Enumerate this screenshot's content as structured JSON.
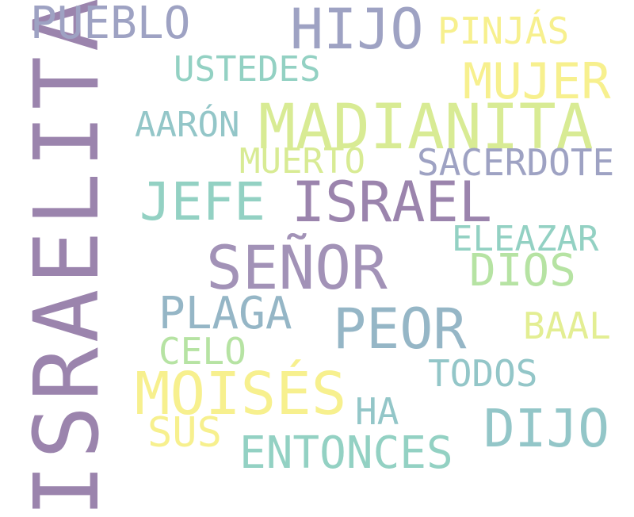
{
  "cloud": {
    "background": "#ffffff",
    "words": {
      "israelita": {
        "text": "ISRAELITA",
        "color": "#9b84ad"
      },
      "pueblo": {
        "text": "PUEBLO",
        "color": "#9ea2c3"
      },
      "hijo": {
        "text": "HIJO",
        "color": "#9ea2c3"
      },
      "pinjas": {
        "text": "PINJÁS",
        "color": "#f7f08e"
      },
      "ustedes": {
        "text": "USTEDES",
        "color": "#93d1c3"
      },
      "mujer": {
        "text": "MUJER",
        "color": "#f7f08e"
      },
      "aaron": {
        "text": "AARÓN",
        "color": "#93c6c8"
      },
      "madianita": {
        "text": "MADIANITA",
        "color": "#d8eb94"
      },
      "muerto": {
        "text": "MUERTO",
        "color": "#d8eb94"
      },
      "sacerdote": {
        "text": "SACERDOTE",
        "color": "#9ea2c3"
      },
      "jefe": {
        "text": "JEFE",
        "color": "#93d1c3"
      },
      "israel": {
        "text": "ISRAEL",
        "color": "#9b84ad"
      },
      "eleazar": {
        "text": "ELEAZAR",
        "color": "#93d1c3"
      },
      "senor": {
        "text": "SEÑOR",
        "color": "#a292b7"
      },
      "dios": {
        "text": "DIOS",
        "color": "#b6e3a3"
      },
      "plaga": {
        "text": "PLAGA",
        "color": "#95b6c6"
      },
      "peor": {
        "text": "PEOR",
        "color": "#95b6c6"
      },
      "baal": {
        "text": "BAAL",
        "color": "#e3ee93"
      },
      "celo": {
        "text": "CELO",
        "color": "#b6e3a3"
      },
      "todos": {
        "text": "TODOS",
        "color": "#93c6c8"
      },
      "moises": {
        "text": "MOISÉS",
        "color": "#f7f08e"
      },
      "ha": {
        "text": "HA",
        "color": "#93c6c8"
      },
      "dijo": {
        "text": "DIJO",
        "color": "#93c6c8"
      },
      "sus": {
        "text": "SUS",
        "color": "#f7f08e"
      },
      "entonces": {
        "text": "ENTONCES",
        "color": "#93d1c3"
      }
    }
  }
}
